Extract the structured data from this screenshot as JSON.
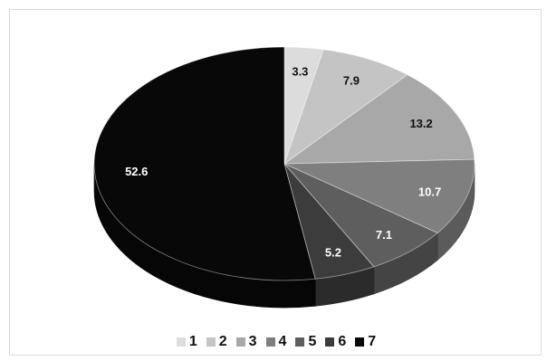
{
  "chart_data": {
    "type": "pie",
    "title": "",
    "three_d": true,
    "legend_position": "bottom",
    "slices": [
      {
        "name": "1",
        "value": 3.3,
        "label": "3.3",
        "color": "#dcdcdc"
      },
      {
        "name": "2",
        "value": 7.9,
        "label": "7.9",
        "color": "#c4c4c4"
      },
      {
        "name": "3",
        "value": 13.2,
        "label": "13.2",
        "color": "#a8a8a8"
      },
      {
        "name": "4",
        "value": 10.7,
        "label": "10.7",
        "color": "#7f7f7f"
      },
      {
        "name": "5",
        "value": 7.1,
        "label": "7.1",
        "color": "#5e5e5e"
      },
      {
        "name": "6",
        "value": 5.2,
        "label": "5.2",
        "color": "#3c3c3c"
      },
      {
        "name": "7",
        "value": 52.6,
        "label": "52.6",
        "color": "#080808"
      }
    ]
  }
}
